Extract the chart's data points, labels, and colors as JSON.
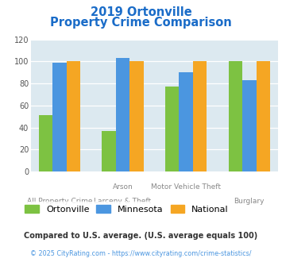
{
  "title_line1": "2019 Ortonville",
  "title_line2": "Property Crime Comparison",
  "category_labels_top": [
    "",
    "Arson",
    "Motor Vehicle Theft",
    ""
  ],
  "category_labels_bot": [
    "All Property Crime",
    "Larceny & Theft",
    "",
    "Burglary"
  ],
  "series": {
    "Ortonville": [
      51,
      37,
      77,
      100
    ],
    "Minnesota": [
      99,
      103,
      90,
      83
    ],
    "National": [
      100,
      100,
      100,
      100
    ]
  },
  "colors": {
    "Ortonville": "#7dc242",
    "Minnesota": "#4b96e0",
    "National": "#f5a623"
  },
  "ylim": [
    0,
    120
  ],
  "yticks": [
    0,
    20,
    40,
    60,
    80,
    100,
    120
  ],
  "title_color": "#1a6cc8",
  "plot_bg_color": "#dce9f0",
  "footnote1": "Compared to U.S. average. (U.S. average equals 100)",
  "footnote2": "© 2025 CityRating.com - https://www.cityrating.com/crime-statistics/",
  "footnote1_color": "#333333",
  "footnote2_color": "#4b96e0",
  "bar_width": 0.22
}
